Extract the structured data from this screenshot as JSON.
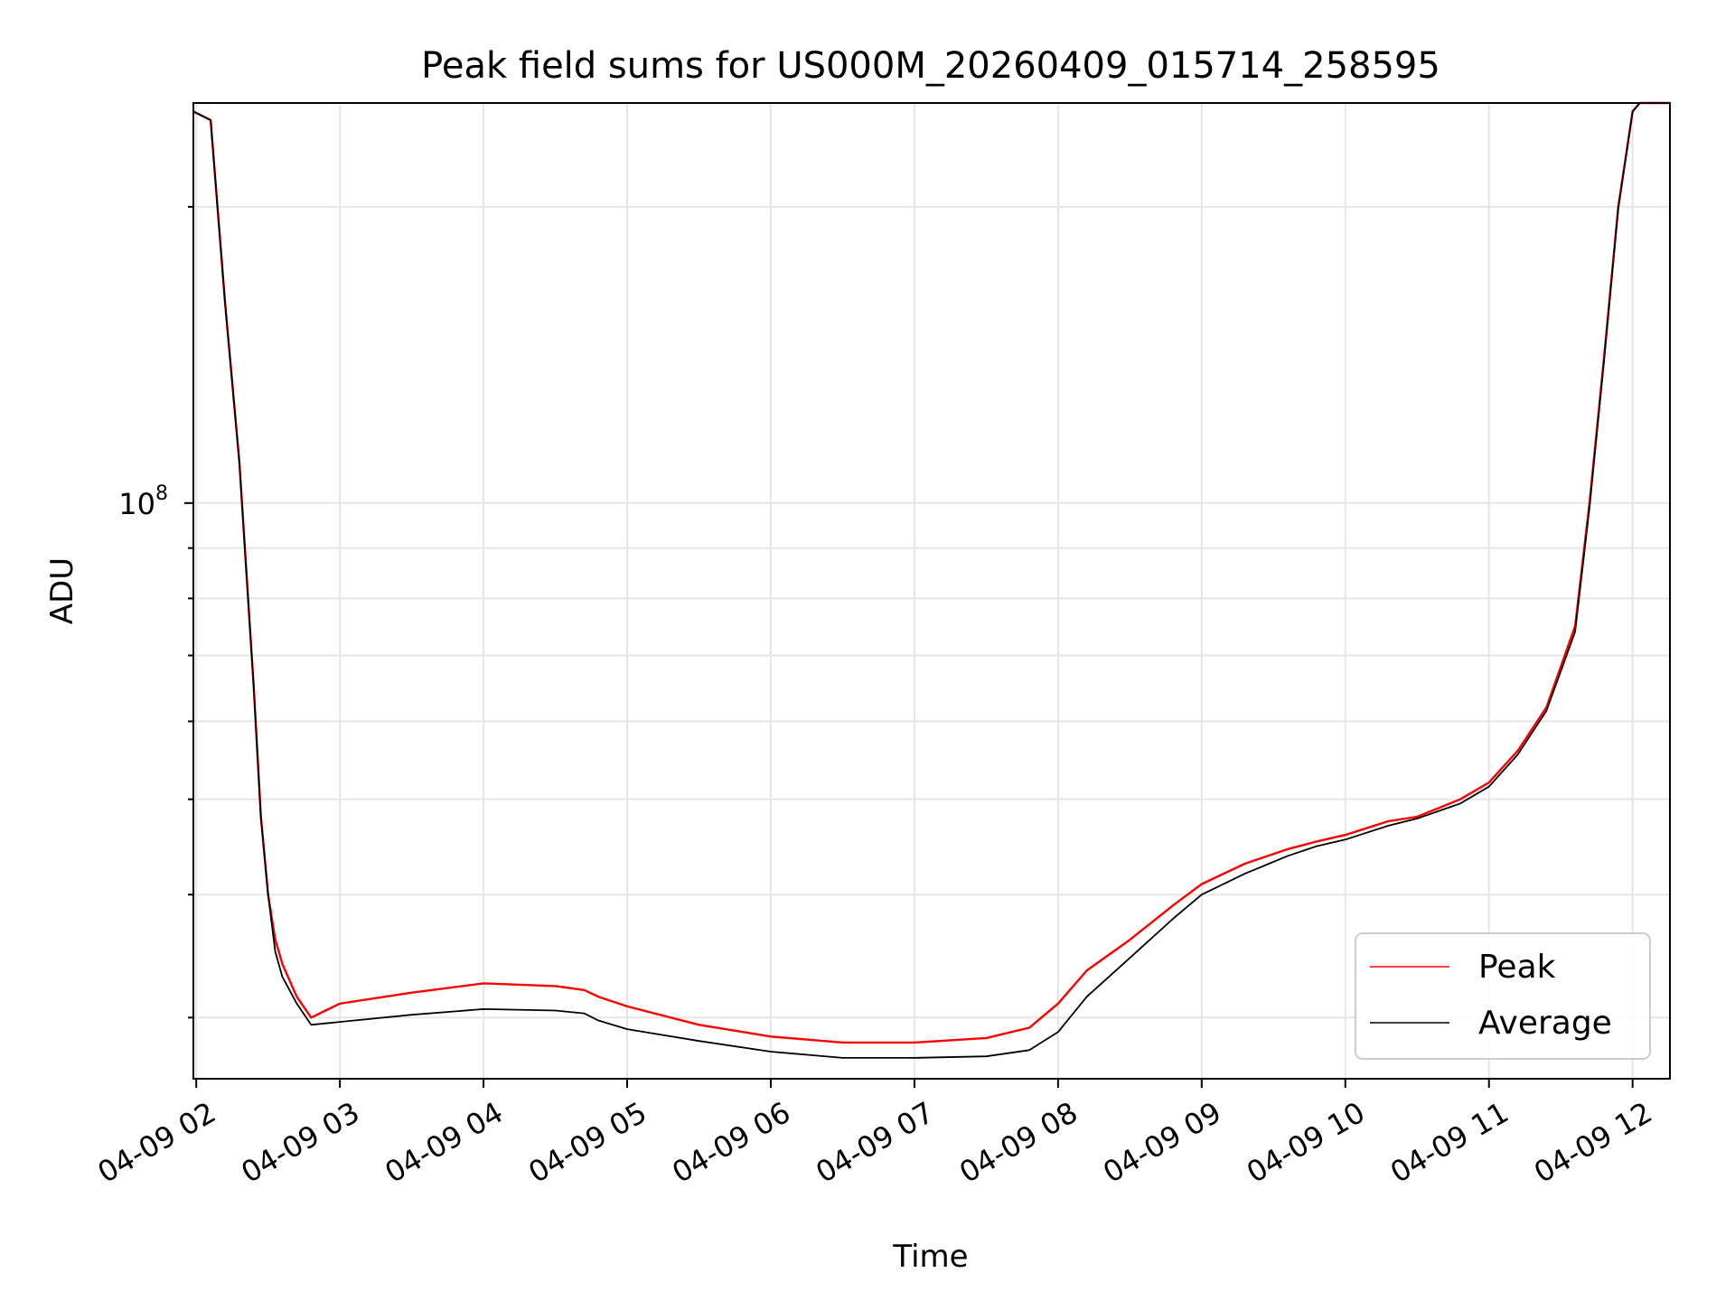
{
  "chart_data": {
    "type": "line",
    "title": "Peak field sums for US000M_20260409_015714_258595",
    "xlabel": "Time",
    "ylabel": "ADU",
    "x_tick_labels": [
      "04-09 02",
      "04-09 03",
      "04-09 04",
      "04-09 05",
      "04-09 06",
      "04-09 07",
      "04-09 08",
      "04-09 09",
      "04-09 10",
      "04-09 11",
      "04-09 12"
    ],
    "x_tick_hours": [
      2,
      3,
      4,
      5,
      6,
      7,
      8,
      9,
      10,
      11,
      12
    ],
    "y_tick_labels": [
      {
        "base": "10",
        "exp": "8",
        "value": 100000000
      }
    ],
    "y_scale": "log",
    "ylim": [
      26000000,
      255000000
    ],
    "xlim": [
      1.98,
      12.26
    ],
    "grid": true,
    "legend_position": "lower-right",
    "colors": {
      "peak": "#ff0000",
      "average": "#000000",
      "grid": "#e6e6e6"
    },
    "series": [
      {
        "name": "Peak",
        "x": [
          1.98,
          2.1,
          2.2,
          2.3,
          2.4,
          2.45,
          2.5,
          2.55,
          2.6,
          2.7,
          2.8,
          2.9,
          3.0,
          3.5,
          4.0,
          4.5,
          4.7,
          4.8,
          5.0,
          5.5,
          6.0,
          6.5,
          7.0,
          7.5,
          7.8,
          8.0,
          8.2,
          8.5,
          8.8,
          9.0,
          9.3,
          9.6,
          9.8,
          10.0,
          10.3,
          10.5,
          10.8,
          11.0,
          11.2,
          11.4,
          11.6,
          11.7,
          11.8,
          11.9,
          12.0,
          12.05,
          12.26
        ],
        "y": [
          250000000,
          245000000,
          160000000,
          110000000,
          65000000,
          48000000,
          40000000,
          36000000,
          34000000,
          31500000,
          30000000,
          30500000,
          31000000,
          31800000,
          32500000,
          32300000,
          32000000,
          31500000,
          30800000,
          29500000,
          28700000,
          28300000,
          28300000,
          28600000,
          29300000,
          31000000,
          33500000,
          36000000,
          39000000,
          41000000,
          43000000,
          44500000,
          45300000,
          46000000,
          47500000,
          48000000,
          50000000,
          52000000,
          56000000,
          62000000,
          75000000,
          100000000,
          140000000,
          200000000,
          250000000,
          255000000,
          255000000
        ]
      },
      {
        "name": "Average",
        "x": [
          1.98,
          2.1,
          2.2,
          2.3,
          2.4,
          2.45,
          2.5,
          2.55,
          2.6,
          2.7,
          2.8,
          2.9,
          3.0,
          3.5,
          4.0,
          4.5,
          4.7,
          4.8,
          5.0,
          5.5,
          6.0,
          6.5,
          7.0,
          7.5,
          7.8,
          8.0,
          8.2,
          8.5,
          8.8,
          9.0,
          9.3,
          9.6,
          9.8,
          10.0,
          10.3,
          10.5,
          10.8,
          11.0,
          11.2,
          11.4,
          11.6,
          11.7,
          11.8,
          11.9,
          12.0,
          12.05,
          12.26
        ],
        "y": [
          250000000,
          245000000,
          160000000,
          110000000,
          65000000,
          48000000,
          40000000,
          35000000,
          33000000,
          31000000,
          29500000,
          29600000,
          29700000,
          30200000,
          30600000,
          30500000,
          30300000,
          29800000,
          29200000,
          28400000,
          27700000,
          27300000,
          27300000,
          27400000,
          27800000,
          29000000,
          31500000,
          34500000,
          37800000,
          40000000,
          42000000,
          43800000,
          44800000,
          45500000,
          47000000,
          47800000,
          49500000,
          51500000,
          55500000,
          61500000,
          74000000,
          99000000,
          139000000,
          199000000,
          250000000,
          255000000,
          255000000
        ]
      }
    ]
  }
}
